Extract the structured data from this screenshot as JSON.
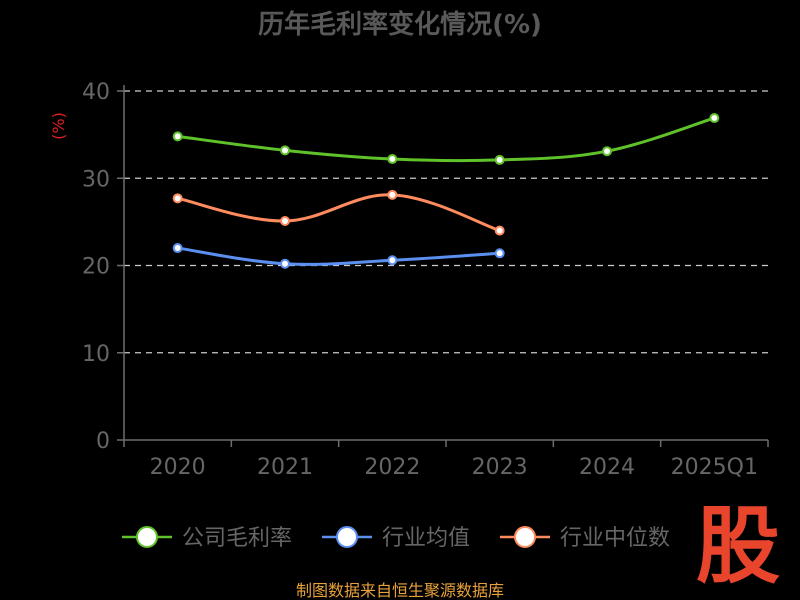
{
  "chart_data": {
    "type": "line",
    "title": "历年毛利率变化情况(%)",
    "ylabel": "(%)",
    "xlabel": "",
    "categories": [
      "2020",
      "2021",
      "2022",
      "2023",
      "2024",
      "2025Q1"
    ],
    "ylim": [
      0,
      40
    ],
    "yticks": [
      "0",
      "10",
      "20",
      "30",
      "40"
    ],
    "grid": true,
    "legend_position": "bottom",
    "series": [
      {
        "name": "公司毛利率",
        "color": "#5fc22a",
        "values": [
          34.8,
          33.2,
          32.2,
          32.1,
          33.1,
          36.9
        ]
      },
      {
        "name": "行业均值",
        "color": "#5b8ff0",
        "values": [
          22.0,
          20.2,
          20.6,
          21.4,
          null,
          null
        ]
      },
      {
        "name": "行业中位数",
        "color": "#ff8b5e",
        "values": [
          27.7,
          25.1,
          28.1,
          24.0,
          null,
          null
        ]
      }
    ]
  },
  "source_text": "制图数据来自恒生聚源数据库",
  "watermark": "股",
  "colors": {
    "background": "#000000",
    "title": "#595959",
    "axis": "#6e6e6e",
    "tick_text": "#666666",
    "ylabel": "#e02020",
    "source": "#e8a23c",
    "watermark": "#e8452c",
    "grid": "#cccccc"
  }
}
